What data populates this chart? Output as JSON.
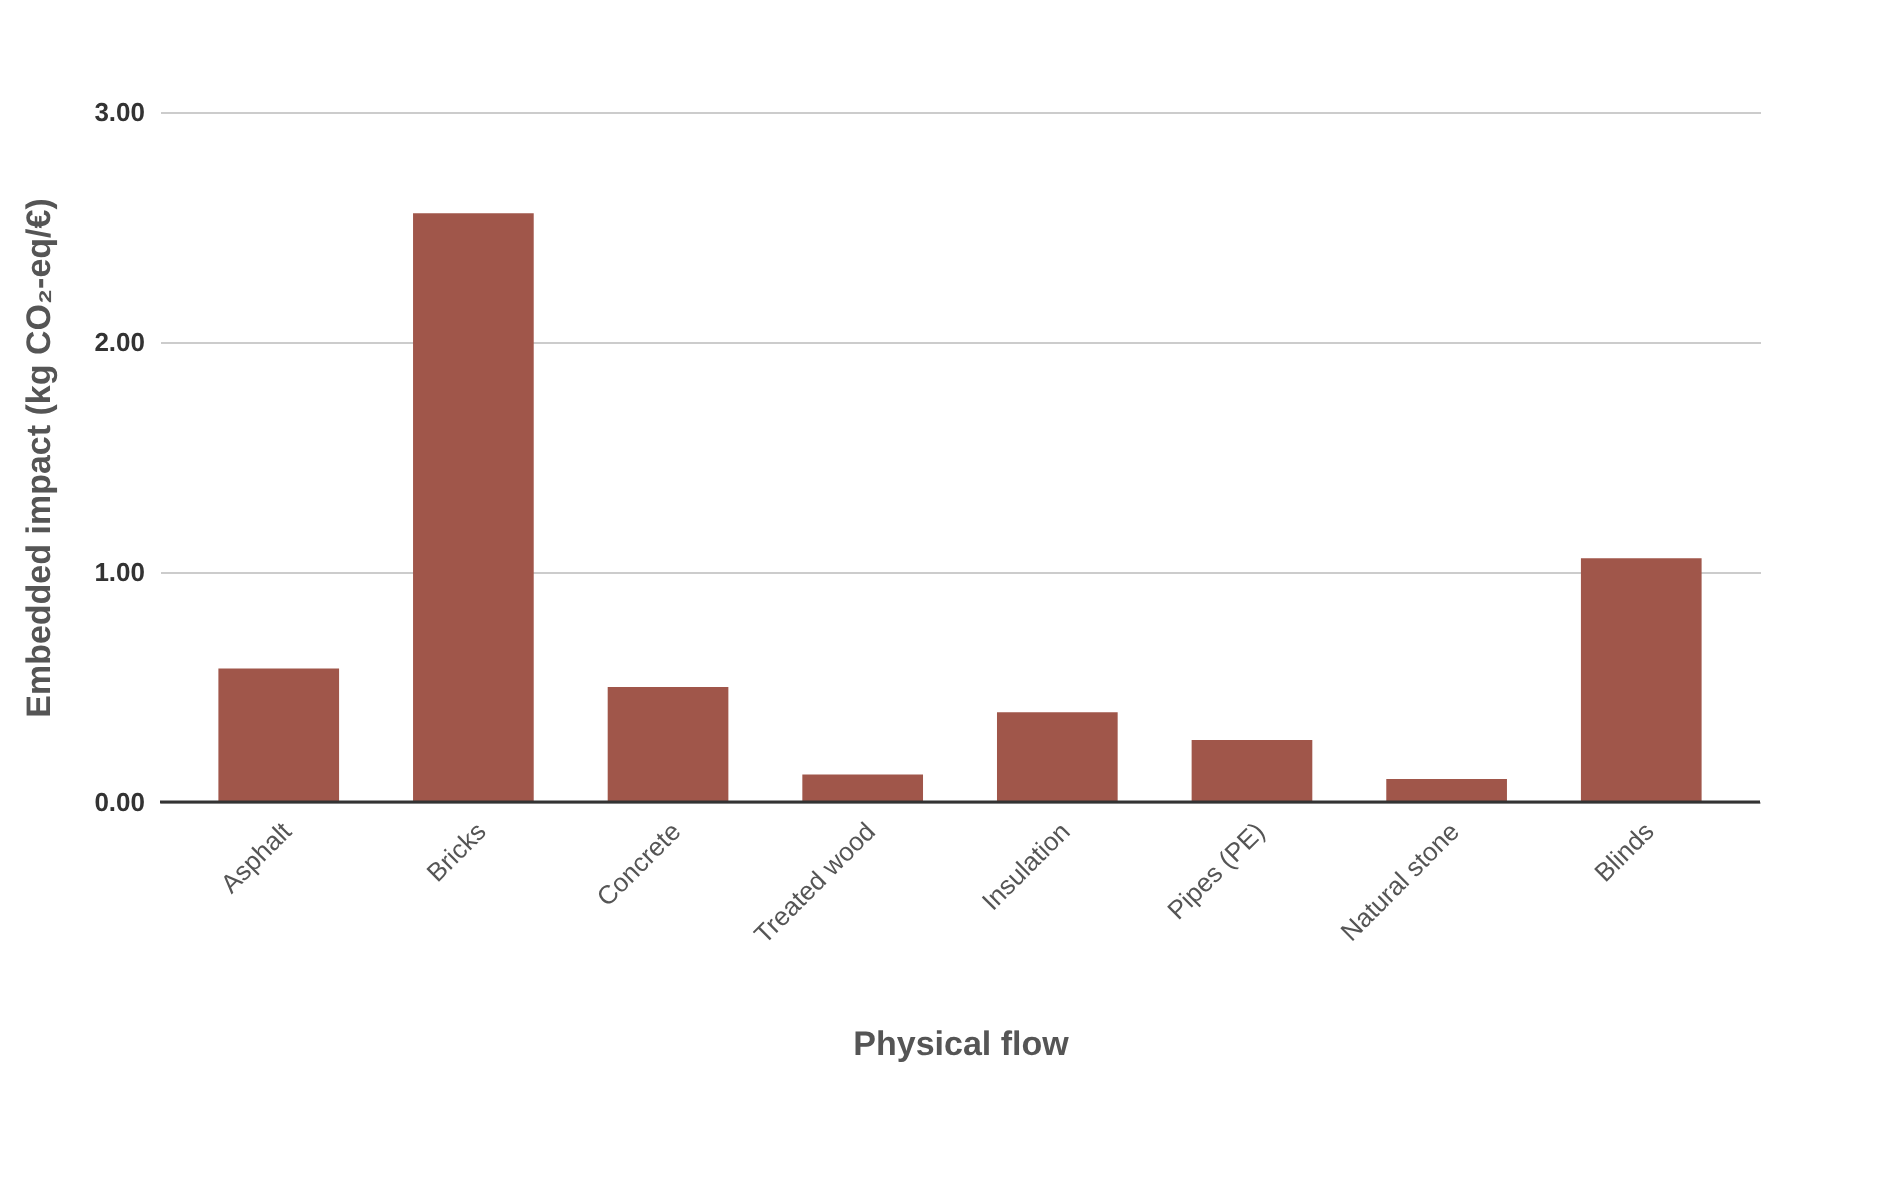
{
  "chart_data": {
    "type": "bar",
    "xlabel": "Physical flow",
    "ylabel": "Embedded impact (kg CO₂-eq/€)",
    "categories": [
      "Asphalt",
      "Bricks",
      "Concrete",
      "Treated wood",
      "Insulation",
      "Pipes (PE)",
      "Natural stone",
      "Blinds"
    ],
    "values": [
      0.58,
      2.56,
      0.5,
      0.12,
      0.39,
      0.27,
      0.1,
      1.06
    ],
    "color": "#a0564a",
    "ylim": [
      0,
      3
    ],
    "yticks": [
      {
        "value": 0,
        "label": "0.00"
      },
      {
        "value": 1,
        "label": "1.00"
      },
      {
        "value": 2,
        "label": "2.00"
      },
      {
        "value": 3,
        "label": "3.00"
      }
    ],
    "grid": "y"
  }
}
